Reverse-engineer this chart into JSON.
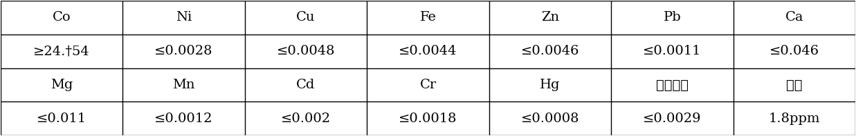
{
  "rows": [
    [
      "Co",
      "Ni",
      "Cu",
      "Fe",
      "Zn",
      "Pb",
      "Ca"
    ],
    [
      "≥24.†54",
      "≤0.0028",
      "≤0.0048",
      "≤0.0044",
      "≤0.0046",
      "≤0.0011",
      "≤0.046"
    ],
    [
      "Mg",
      "Mn",
      "Cd",
      "Cr",
      "Hg",
      "水不溶物",
      "油分"
    ],
    [
      "≤0.011",
      "≤0.0012",
      "≤0.002",
      "≤0.0018",
      "≤0.0008",
      "≤0.0029",
      "1.8ppm"
    ]
  ],
  "n_cols": 7,
  "n_rows": 4,
  "bg_color": "#ffffff",
  "text_color": "#000000",
  "line_color": "#000000",
  "font_size": 14,
  "fig_width": 12.37,
  "fig_height": 1.97,
  "dpi": 100
}
